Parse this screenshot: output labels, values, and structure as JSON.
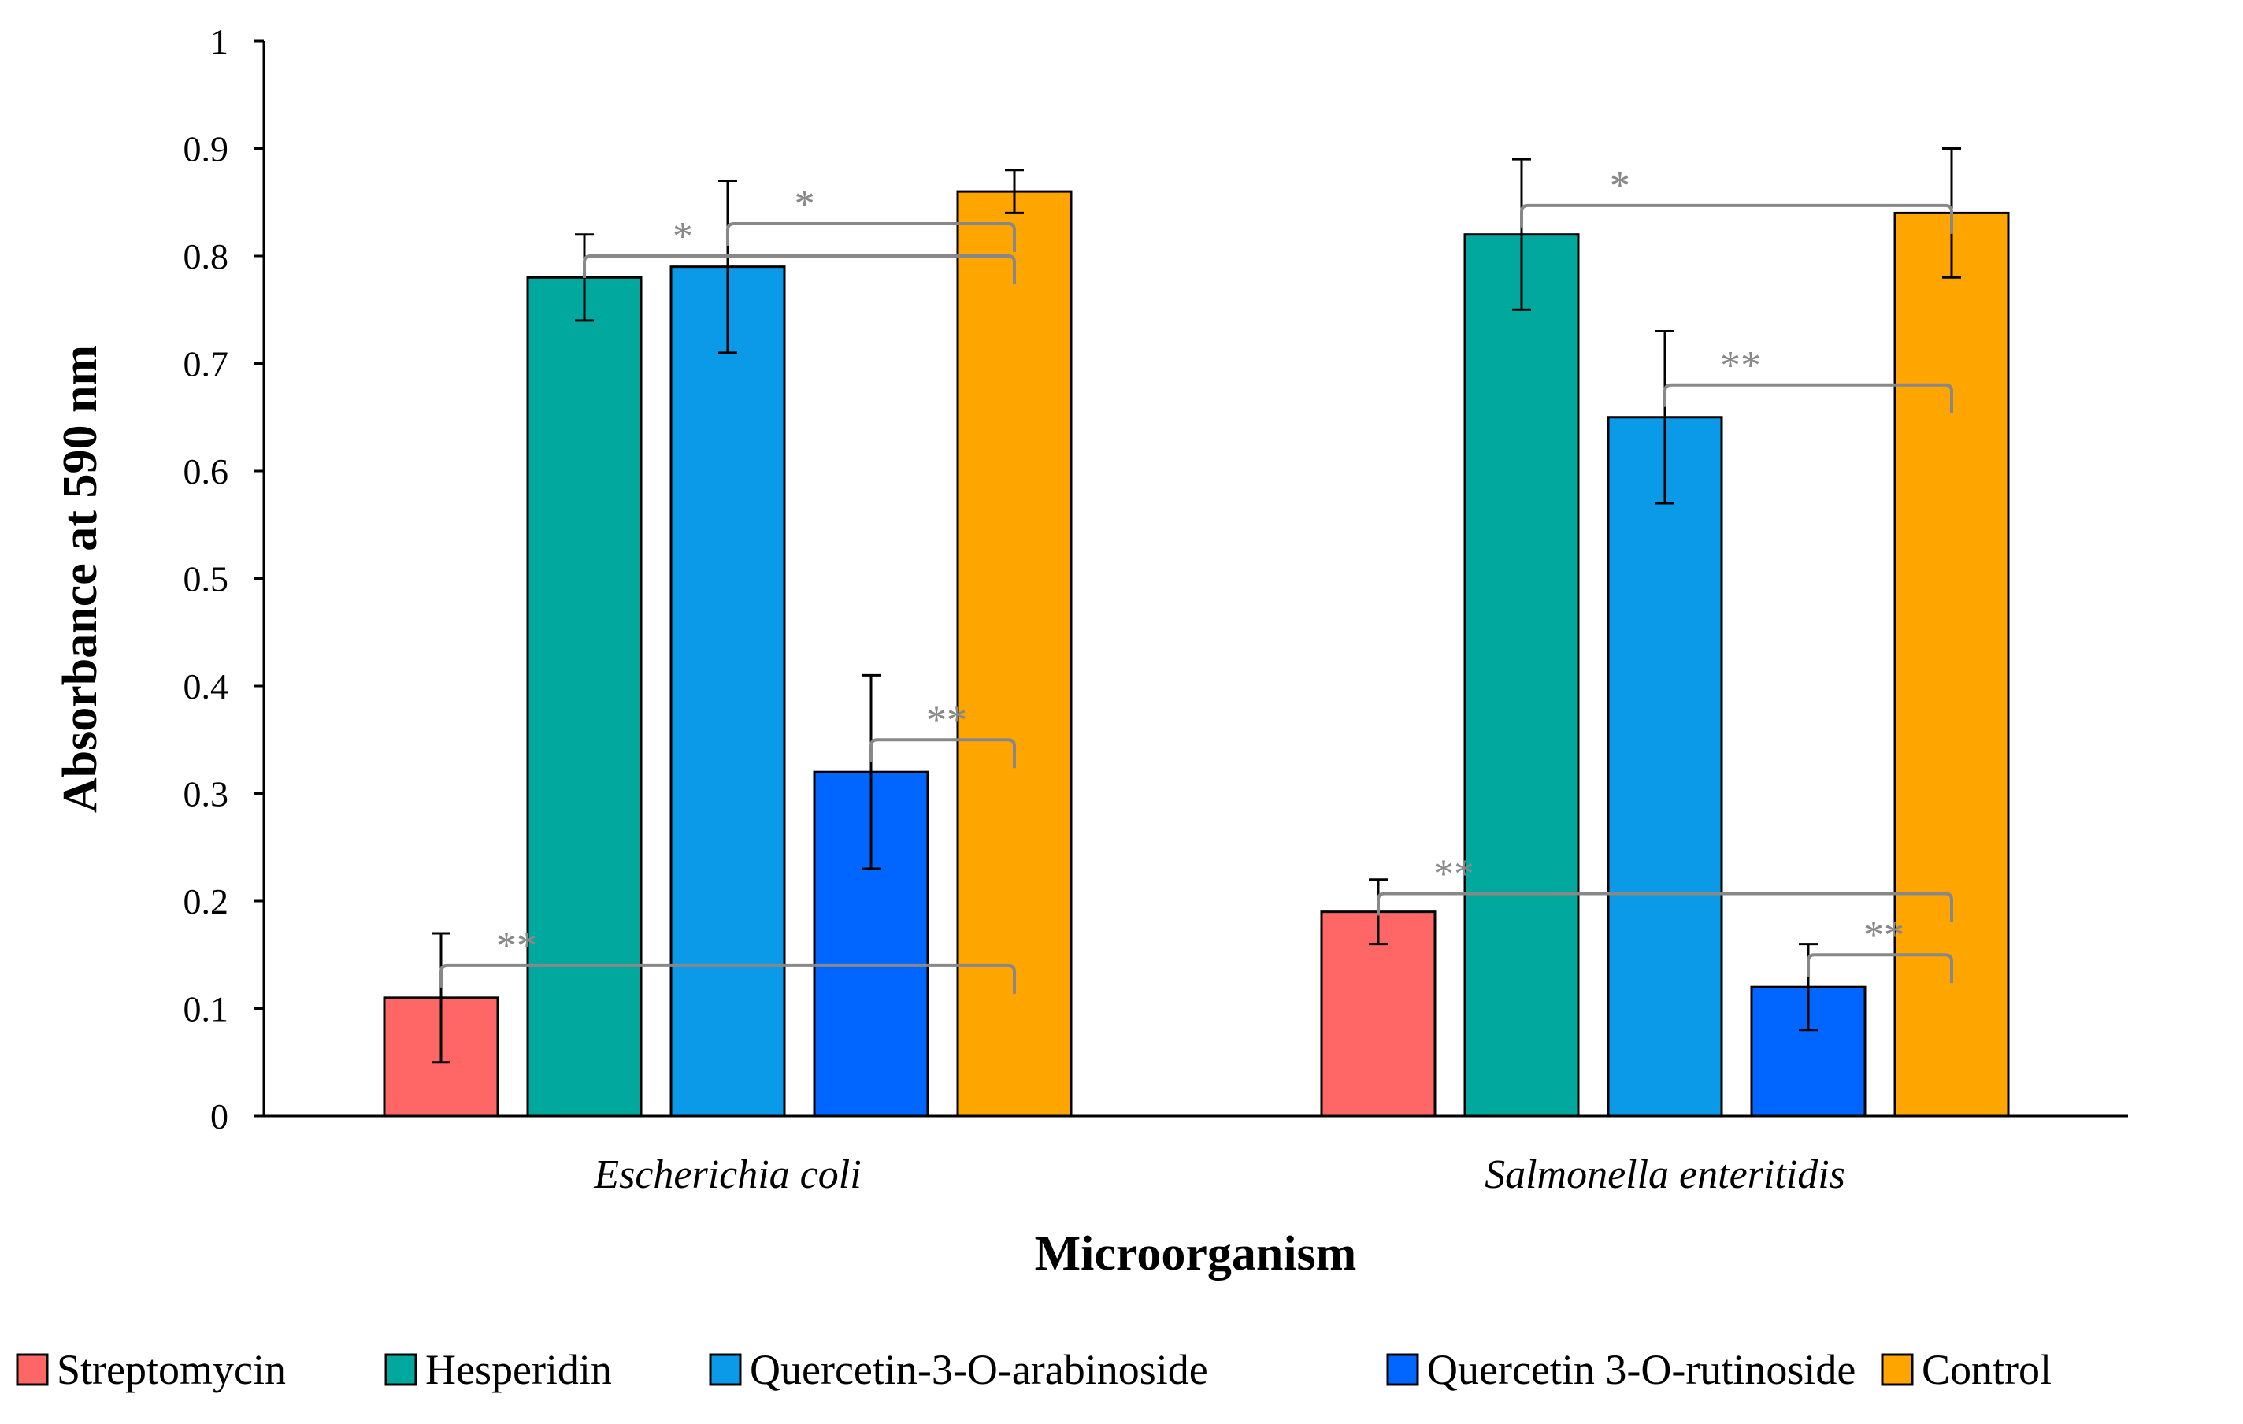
{
  "chart_data": {
    "type": "bar",
    "categories": [
      "Escherichia coli",
      "Salmonella enteritidis"
    ],
    "series": [
      {
        "name": "Streptomycin",
        "color": "#FF6666",
        "values": [
          0.11,
          0.19
        ],
        "errors": [
          0.06,
          0.03
        ]
      },
      {
        "name": "Hesperidin",
        "color": "#00A89D",
        "values": [
          0.78,
          0.82
        ],
        "errors": [
          0.04,
          0.07
        ]
      },
      {
        "name": "Quercetin-3-O-arabinoside",
        "color": "#0A9AE8",
        "values": [
          0.79,
          0.65
        ],
        "errors": [
          0.08,
          0.08
        ]
      },
      {
        "name": "Quercetin 3-O-rutinoside",
        "color": "#0066FF",
        "values": [
          0.32,
          0.12
        ],
        "errors": [
          0.09,
          0.04
        ]
      },
      {
        "name": "Control",
        "color": "#FFA500",
        "values": [
          0.86,
          0.84
        ],
        "errors": [
          0.02,
          0.06
        ]
      }
    ],
    "xlabel": "Microorganism",
    "ylabel": "Absorbance at 590 nm",
    "ylim": [
      0,
      1
    ],
    "yticks": [
      "0",
      "0.1",
      "0.2",
      "0.3",
      "0.4",
      "0.5",
      "0.6",
      "0.7",
      "0.8",
      "0.9",
      "1"
    ],
    "legend_position": "bottom",
    "grid": false,
    "significance": [
      {
        "category": 0,
        "from_series": 0,
        "to_series": 4,
        "label": "**",
        "y": 0.14
      },
      {
        "category": 0,
        "from_series": 1,
        "to_series": 4,
        "label": "*",
        "y": 0.8
      },
      {
        "category": 0,
        "from_series": 2,
        "to_series": 4,
        "label": "*",
        "y": 0.83
      },
      {
        "category": 0,
        "from_series": 3,
        "to_series": 4,
        "label": "**",
        "y": 0.35
      },
      {
        "category": 1,
        "from_series": 0,
        "to_series": 4,
        "label": "**",
        "y": 0.207
      },
      {
        "category": 1,
        "from_series": 1,
        "to_series": 4,
        "label": "*",
        "y": 0.847
      },
      {
        "category": 1,
        "from_series": 2,
        "to_series": 4,
        "label": "**",
        "y": 0.68
      },
      {
        "category": 1,
        "from_series": 3,
        "to_series": 4,
        "label": "**",
        "y": 0.15
      }
    ]
  }
}
